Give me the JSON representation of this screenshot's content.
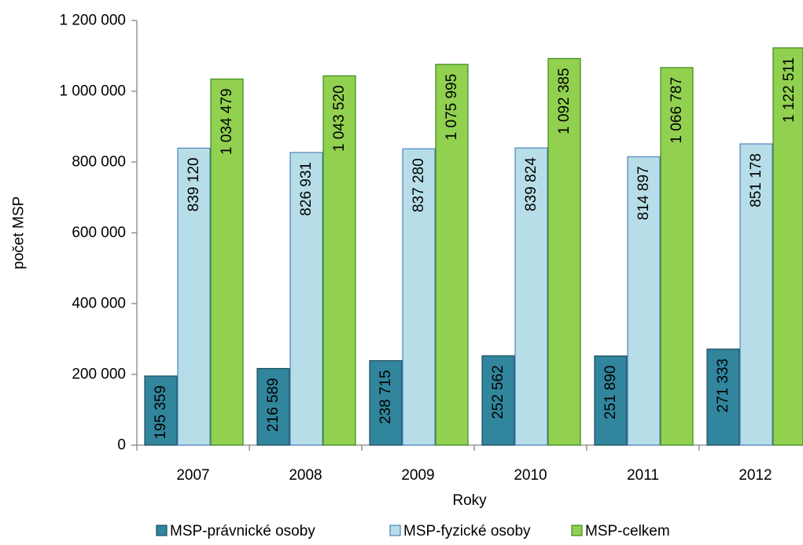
{
  "chart_data": {
    "type": "bar",
    "categories": [
      "2007",
      "2008",
      "2009",
      "2010",
      "2011",
      "2012"
    ],
    "series": [
      {
        "name": "MSP-právnické osoby",
        "color": "#31859c",
        "values": [
          195359,
          216589,
          238715,
          252562,
          251890,
          271333
        ],
        "labels": [
          "195 359",
          "216 589",
          "238 715",
          "252 562",
          "251 890",
          "271 333"
        ]
      },
      {
        "name": "MSP-fyzické osoby",
        "color": "#b7dee8",
        "values": [
          839120,
          826931,
          837280,
          839824,
          814897,
          851178
        ],
        "labels": [
          "839 120",
          "826 931",
          "837 280",
          "839 824",
          "814 897",
          "851 178"
        ]
      },
      {
        "name": "MSP-celkem",
        "color": "#92d050",
        "values": [
          1034479,
          1043520,
          1075995,
          1092385,
          1066787,
          1122511
        ],
        "labels": [
          "1 034 479",
          "1 043 520",
          "1 075 995",
          "1 092 385",
          "1 066 787",
          "1 122 511"
        ]
      }
    ],
    "xlabel": "Roky",
    "ylabel": "počet MSP",
    "ylim": [
      0,
      1200000
    ],
    "yticks": [
      0,
      200000,
      400000,
      600000,
      800000,
      1000000,
      1200000
    ],
    "ytick_labels": [
      "0",
      "200 000",
      "400 000",
      "600 000",
      "800 000",
      "1 000 000",
      "1 200 000"
    ],
    "grid": false,
    "legend_position": "bottom"
  }
}
